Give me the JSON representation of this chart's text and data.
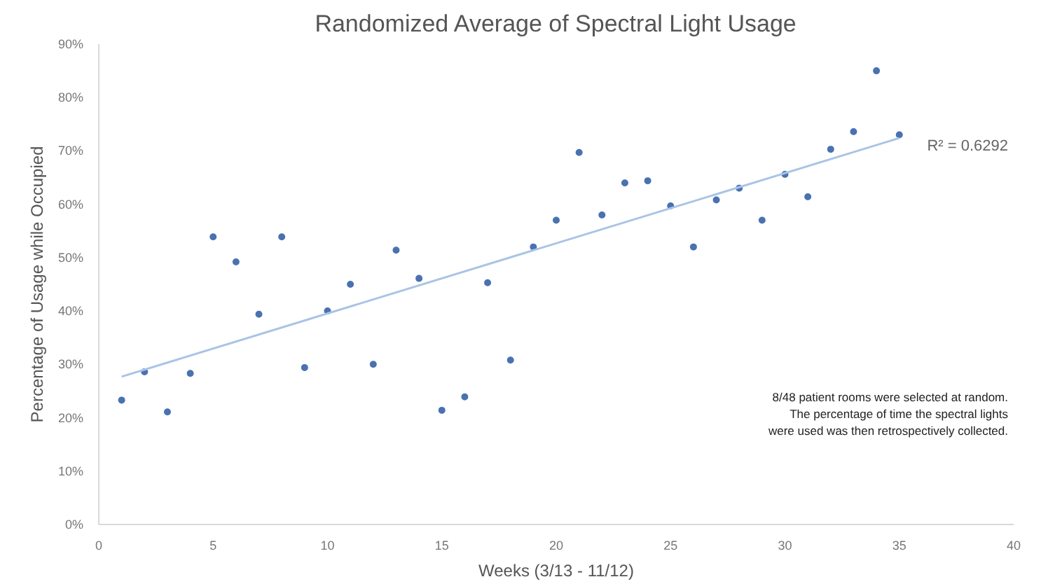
{
  "chart_data": {
    "type": "scatter",
    "title": "Randomized Average of Spectral Light Usage",
    "xlabel": "Weeks (3/13 - 11/12)",
    "ylabel": "Percentage of Usage while Occupied",
    "x": [
      1,
      2,
      3,
      4,
      5,
      6,
      7,
      8,
      9,
      10,
      11,
      12,
      13,
      14,
      15,
      16,
      17,
      18,
      19,
      20,
      21,
      22,
      23,
      24,
      25,
      26,
      27,
      28,
      29,
      30,
      31,
      32,
      33,
      34,
      35
    ],
    "series": [
      {
        "color": "#4a72b0",
        "marker": "circle",
        "values": [
          23.3,
          28.6,
          21.1,
          28.3,
          53.9,
          49.2,
          39.4,
          53.9,
          29.4,
          40,
          45,
          30,
          51.4,
          46.1,
          21.4,
          23.9,
          45.3,
          30.8,
          52,
          57,
          69.7,
          58,
          64,
          64.4,
          59.7,
          52,
          60.8,
          63,
          57,
          65.6,
          61.4,
          70.3,
          73.6,
          85,
          73
        ]
      },
      {
        "type": "line",
        "color": "#a9c4e6",
        "x": [
          1,
          35
        ],
        "values": [
          27.7,
          72.4
        ]
      }
    ],
    "xlim": [
      0,
      40
    ],
    "xticks": [
      0,
      5,
      10,
      15,
      20,
      25,
      30,
      35,
      40
    ],
    "ylim": [
      0,
      90
    ],
    "yticks": [
      {
        "value": 0,
        "label": "0%"
      },
      {
        "value": 10,
        "label": "10%"
      },
      {
        "value": 20,
        "label": "20%"
      },
      {
        "value": 30,
        "label": "30%"
      },
      {
        "value": 40,
        "label": "40%"
      },
      {
        "value": 50,
        "label": "50%"
      },
      {
        "value": 60,
        "label": "60%"
      },
      {
        "value": 70,
        "label": "70%"
      },
      {
        "value": 80,
        "label": "80%"
      },
      {
        "value": 90,
        "label": "90%"
      }
    ],
    "grid": false,
    "annotations": [
      "R² = 0.6292",
      "8/48 patient rooms were selected at random.\nThe percentage of time the spectral lights\nwere used was then retrospectively collected."
    ]
  }
}
